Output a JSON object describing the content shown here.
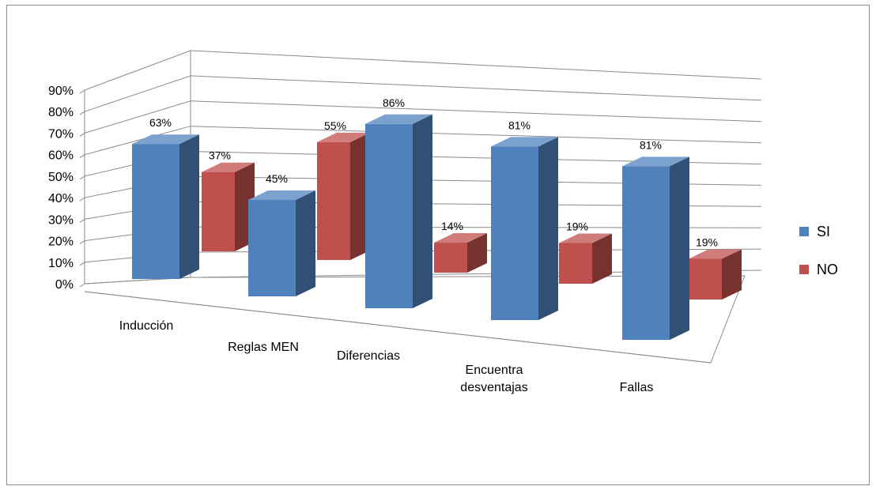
{
  "chart_data": {
    "type": "bar",
    "title": "",
    "xlabel": "",
    "ylabel": "",
    "ylim": [
      0,
      90
    ],
    "yticks": [
      0,
      10,
      20,
      30,
      40,
      50,
      60,
      70,
      80,
      90
    ],
    "tick_format": "percent",
    "grid": true,
    "legend": "right",
    "categories": [
      [
        "Inducción"
      ],
      [
        "Reglas MEN"
      ],
      [
        "Diferencias"
      ],
      [
        "Encuentra",
        "desventajas"
      ],
      [
        "Fallas"
      ]
    ],
    "series": [
      {
        "name": "SI",
        "values": [
          63,
          45,
          86,
          81,
          81
        ],
        "labels": [
          "63%",
          "45%",
          "86%",
          "81%",
          "81%"
        ],
        "color": "#4F81BD"
      },
      {
        "name": "NO",
        "values": [
          37,
          55,
          14,
          19,
          19
        ],
        "labels": [
          "37%",
          "55%",
          "14%",
          "19%",
          "19%"
        ],
        "color": "#C0504D"
      }
    ]
  }
}
